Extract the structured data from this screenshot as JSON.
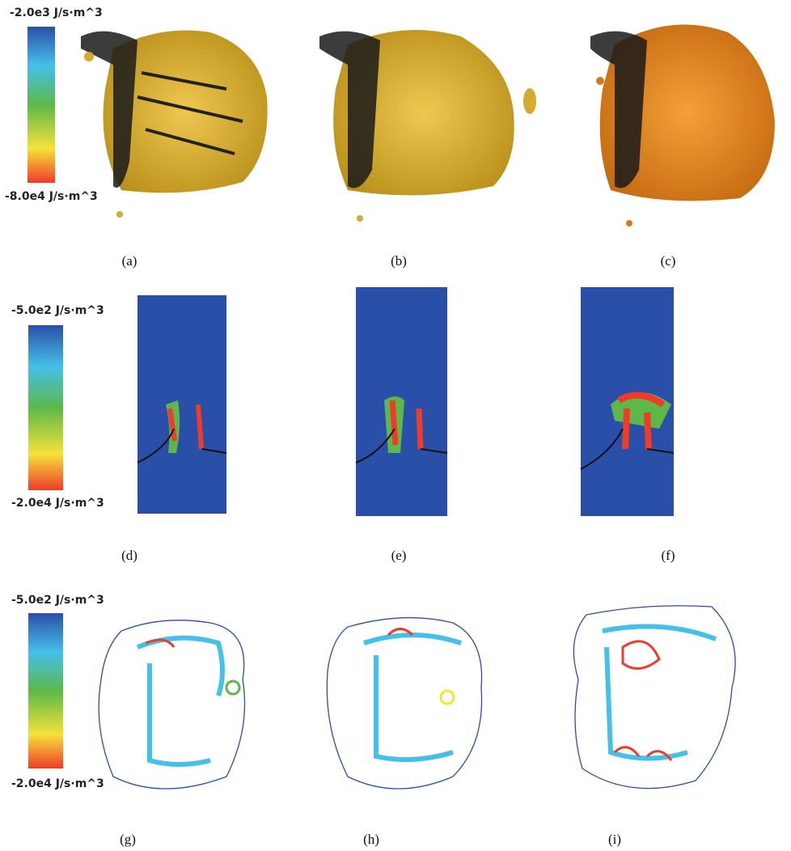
{
  "rows": [
    {
      "colorbar": {
        "top": "-2.0e3 J/s·m^3",
        "bottom": "-8.0e4 J/s·m^3"
      },
      "panels": [
        "(a)",
        "(b)",
        "(c)"
      ]
    },
    {
      "colorbar": {
        "top": "-5.0e2 J/s·m^3",
        "bottom": "-2.0e4 J/s·m^3"
      },
      "panels": [
        "(d)",
        "(e)",
        "(f)"
      ]
    },
    {
      "colorbar": {
        "top": "-5.0e2 J/s·m^3",
        "bottom": "-2.0e4 J/s·m^3"
      },
      "panels": [
        "(g)",
        "(h)",
        "(i)"
      ]
    }
  ]
}
